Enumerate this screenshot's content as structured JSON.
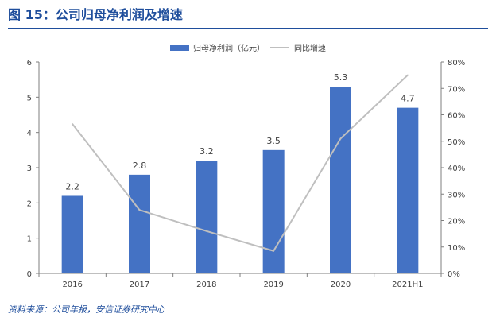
{
  "figure": {
    "title": "图 15：公司归母净利润及增速",
    "source": "资料来源：公司年报，安信证券研究中心"
  },
  "colors": {
    "bar": "#4472c4",
    "line": "#bfbfbf",
    "title": "#1f4e9c",
    "axis": "#7f7f7f",
    "text": "#404040"
  },
  "chart_data": {
    "type": "bar+line",
    "categories": [
      "2016",
      "2017",
      "2018",
      "2019",
      "2020",
      "2021H1"
    ],
    "series": [
      {
        "name": "归母净利润（亿元）",
        "type": "bar",
        "axis": "left",
        "values": [
          2.2,
          2.8,
          3.2,
          3.5,
          5.3,
          4.7
        ],
        "labels": [
          "2.2",
          "2.8",
          "3.2",
          "3.5",
          "5.3",
          "4.7"
        ]
      },
      {
        "name": "同比增速",
        "type": "line",
        "axis": "right",
        "values": [
          56.5,
          24.0,
          16.0,
          8.5,
          51.0,
          75.0
        ]
      }
    ],
    "y_left": {
      "min": 0,
      "max": 6,
      "ticks": [
        "0",
        "1",
        "2",
        "3",
        "4",
        "5",
        "6"
      ]
    },
    "y_right": {
      "min": 0,
      "max": 80,
      "ticks": [
        "0%",
        "10%",
        "20%",
        "30%",
        "40%",
        "50%",
        "60%",
        "70%",
        "80%"
      ]
    },
    "legend_position": "top-center",
    "grid": false
  }
}
